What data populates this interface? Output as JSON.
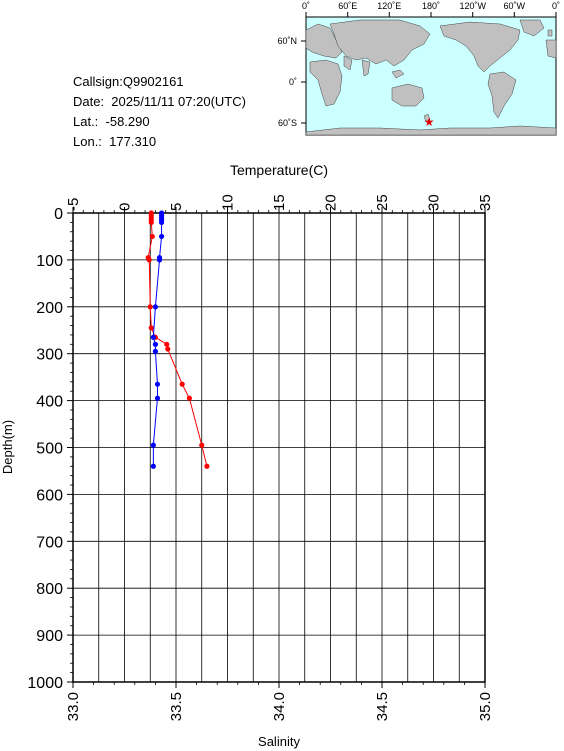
{
  "info": {
    "callsign": "Callsign:Q9902161",
    "date": "Date:  2025/11/11 07:20(UTC)",
    "lat": "Lat.:  -58.290",
    "lon": "Lon.:  177.310"
  },
  "map": {
    "top_labels": [
      "0˚",
      "60˚E",
      "120˚E",
      "180˚",
      "120˚W",
      "60˚W",
      "0˚"
    ],
    "side_labels": [
      "60˚N",
      "0˚",
      "60˚S"
    ],
    "marker": {
      "lon": 177.31,
      "lat": -58.29,
      "color": "#e00000"
    },
    "ocean_color": "#ccffff",
    "land_color": "#c0c0c0"
  },
  "chart_data": {
    "type": "line",
    "ylabel": "Depth(m)",
    "ylim": [
      1000,
      0
    ],
    "yticks": [
      "0",
      "100",
      "200",
      "300",
      "400",
      "500",
      "600",
      "700",
      "800",
      "900",
      "1000"
    ],
    "temperature_axis": {
      "label": "Temperature(C)",
      "lim": [
        -5,
        35
      ],
      "ticks": [
        "-5",
        "0",
        "5",
        "10",
        "15",
        "20",
        "25",
        "30",
        "35"
      ]
    },
    "salinity_axis": {
      "label": "Salinity",
      "lim": [
        33.0,
        35.0
      ],
      "ticks": [
        "33.0",
        "33.5",
        "34.0",
        "34.5",
        "35.0"
      ]
    },
    "grid": true,
    "series": [
      {
        "quantity": "temperature",
        "color": "#ff0000",
        "points": [
          [
            2.6,
            0
          ],
          [
            2.6,
            5
          ],
          [
            2.6,
            10
          ],
          [
            2.6,
            15
          ],
          [
            2.6,
            20
          ],
          [
            2.7,
            50
          ],
          [
            2.3,
            95
          ],
          [
            2.4,
            100
          ],
          [
            2.5,
            200
          ],
          [
            2.6,
            245
          ],
          [
            3.0,
            265
          ],
          [
            4.1,
            280
          ],
          [
            4.2,
            290
          ],
          [
            5.6,
            365
          ],
          [
            6.3,
            395
          ],
          [
            7.5,
            495
          ],
          [
            8.0,
            540
          ]
        ]
      },
      {
        "quantity": "salinity",
        "color": "#0000ff",
        "points": [
          [
            33.43,
            0
          ],
          [
            33.43,
            5
          ],
          [
            33.43,
            10
          ],
          [
            33.43,
            15
          ],
          [
            33.43,
            20
          ],
          [
            33.43,
            50
          ],
          [
            33.42,
            95
          ],
          [
            33.42,
            100
          ],
          [
            33.4,
            200
          ],
          [
            33.39,
            265
          ],
          [
            33.4,
            280
          ],
          [
            33.4,
            295
          ],
          [
            33.41,
            365
          ],
          [
            33.41,
            395
          ],
          [
            33.39,
            495
          ],
          [
            33.39,
            540
          ]
        ]
      }
    ]
  }
}
